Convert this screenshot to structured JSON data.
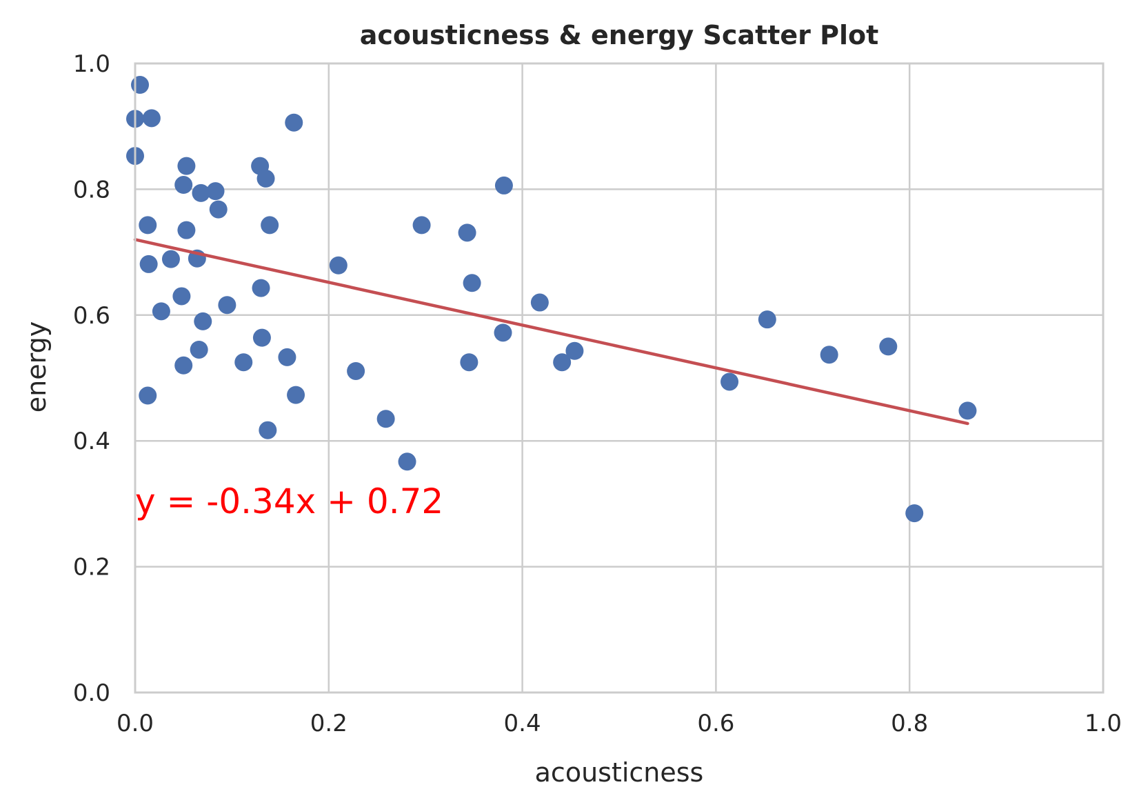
{
  "chart_data": {
    "type": "scatter",
    "title": "acousticness & energy Scatter Plot",
    "xlabel": "acousticness",
    "ylabel": "energy",
    "xlim": [
      0.0,
      1.0
    ],
    "ylim": [
      0.0,
      1.0
    ],
    "x_ticks": [
      "0.0",
      "0.2",
      "0.4",
      "0.6",
      "0.8",
      "1.0"
    ],
    "y_ticks": [
      "0.0",
      "0.2",
      "0.4",
      "0.6",
      "0.8",
      "1.0"
    ],
    "grid": true,
    "legend": "none",
    "colors": {
      "points": "#4c72b0",
      "trendline": "#c44e52",
      "equation": "#ff0000",
      "grid": "#cccccc",
      "axes_border": "#cccccc"
    },
    "series": [
      {
        "x": [
          0.005,
          0.0,
          0.017,
          0.0,
          0.053,
          0.05,
          0.068,
          0.083,
          0.086,
          0.013,
          0.053,
          0.014,
          0.037,
          0.064,
          0.048,
          0.027,
          0.07,
          0.095,
          0.066,
          0.05,
          0.013,
          0.112,
          0.129,
          0.135,
          0.139,
          0.164,
          0.13,
          0.131,
          0.157,
          0.166,
          0.137,
          0.21,
          0.228,
          0.259,
          0.296,
          0.281,
          0.343,
          0.348,
          0.345,
          0.381,
          0.38,
          0.418,
          0.441,
          0.454,
          0.614,
          0.653,
          0.717,
          0.778,
          0.805,
          0.86
        ],
        "y": [
          0.966,
          0.912,
          0.913,
          0.853,
          0.837,
          0.807,
          0.794,
          0.797,
          0.768,
          0.743,
          0.735,
          0.681,
          0.689,
          0.69,
          0.63,
          0.606,
          0.59,
          0.616,
          0.545,
          0.52,
          0.472,
          0.525,
          0.837,
          0.817,
          0.743,
          0.906,
          0.643,
          0.564,
          0.533,
          0.473,
          0.417,
          0.679,
          0.511,
          0.435,
          0.743,
          0.367,
          0.731,
          0.651,
          0.525,
          0.806,
          0.572,
          0.62,
          0.525,
          0.543,
          0.494,
          0.593,
          0.537,
          0.55,
          0.285,
          0.448
        ]
      }
    ],
    "trendline": {
      "x_start": 0.0,
      "x_end": 0.86,
      "slope": -0.34,
      "intercept": 0.72,
      "equation_label": "y = -0.34x + 0.72"
    }
  }
}
